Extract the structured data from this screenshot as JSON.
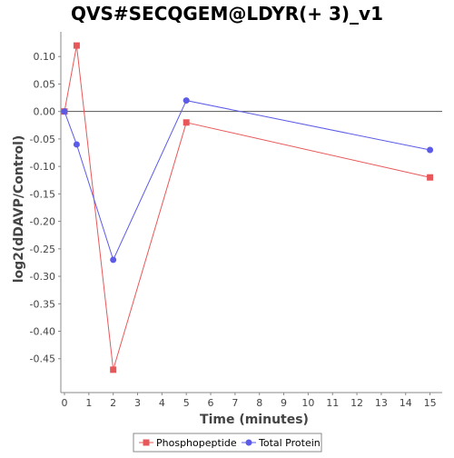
{
  "chart_data": {
    "type": "line",
    "title": "QVS#SECQGEM@LDYR(+ 3)_v1",
    "xlabel": "Time (minutes)",
    "ylabel": "log2(dDAVP/Control)",
    "xlim": [
      0,
      15.5
    ],
    "ylim": [
      -0.505,
      0.145
    ],
    "x_ticks": [
      0,
      1,
      2,
      3,
      4,
      5,
      6,
      7,
      8,
      9,
      10,
      11,
      12,
      13,
      14,
      15
    ],
    "y_ticks": [
      0.1,
      0.05,
      0.0,
      -0.05,
      -0.1,
      -0.15,
      -0.2,
      -0.25,
      -0.3,
      -0.35,
      -0.4,
      -0.45
    ],
    "y_tick_labels": [
      "0.10",
      "0.05",
      "0.00",
      "-0.05",
      "-0.10",
      "-0.15",
      "-0.20",
      "-0.25",
      "-0.30",
      "-0.35",
      "-0.40",
      "-0.45"
    ],
    "grid": false,
    "zero_line": true,
    "legend_position": "bottom-center",
    "series": [
      {
        "name": "Phosphopeptide",
        "color": "#e8585a",
        "marker": "square",
        "x": [
          0,
          0.5,
          2,
          5,
          15
        ],
        "y": [
          0.0,
          0.12,
          -0.47,
          -0.02,
          -0.12
        ]
      },
      {
        "name": "Total Protein",
        "color": "#5b5be8",
        "marker": "circle",
        "x": [
          0,
          0.5,
          2,
          5,
          15
        ],
        "y": [
          0.0,
          -0.06,
          -0.27,
          0.02,
          -0.07
        ]
      }
    ]
  }
}
